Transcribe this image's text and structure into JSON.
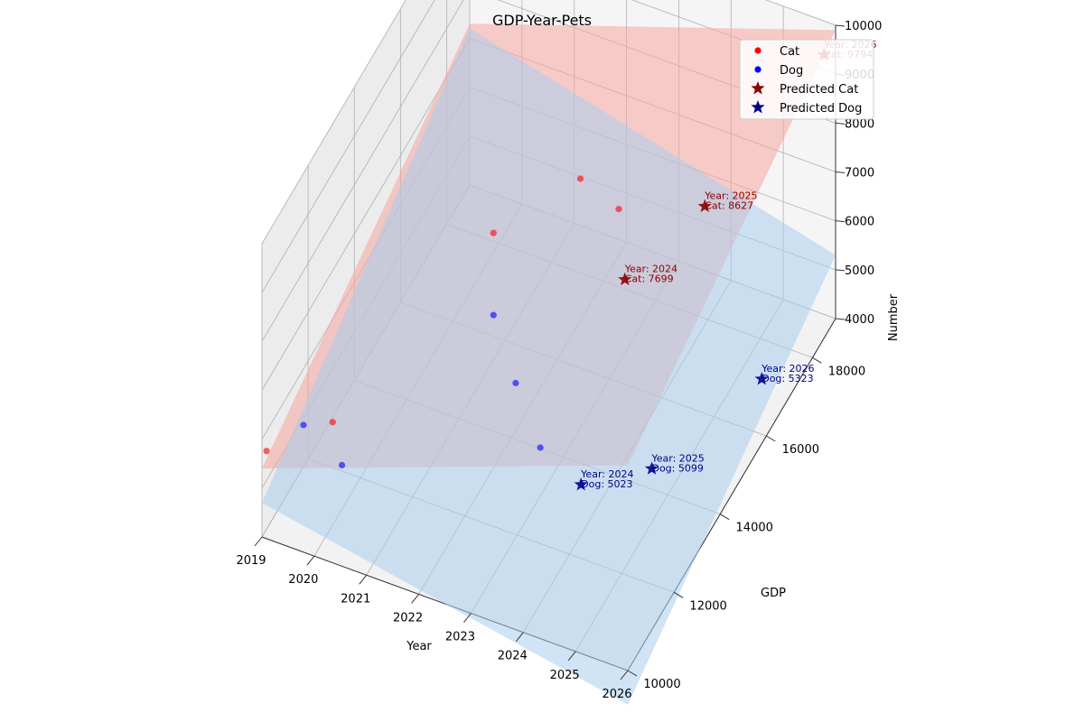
{
  "chart_data": {
    "type": "scatter",
    "title": "GDP-Year-Pets",
    "xlabel": "Year",
    "ylabel": "GDP",
    "zlabel": "Number",
    "x_ticks": [
      "2019",
      "2020",
      "2021",
      "2022",
      "2023",
      "2024",
      "2025",
      "2026"
    ],
    "y_ticks": [
      "10000",
      "12000",
      "14000",
      "16000",
      "18000"
    ],
    "z_ticks": [
      "4000",
      "5000",
      "6000",
      "7000",
      "8000",
      "9000",
      "10000"
    ],
    "xlim": [
      2019,
      2026
    ],
    "ylim": [
      10000,
      19000
    ],
    "zlim": [
      4000,
      10000
    ],
    "legend_position": "top-right",
    "series": [
      {
        "name": "Cat",
        "marker": "circle",
        "color": "#ff0000",
        "points": [
          [
            2019,
            10200,
            5600
          ],
          [
            2020,
            10800,
            6100
          ],
          [
            2021,
            15500,
            6600
          ],
          [
            2022,
            17000,
            6900
          ],
          [
            2023,
            16400,
            7150
          ]
        ]
      },
      {
        "name": "Dog",
        "marker": "circle",
        "color": "#0000ff",
        "points": [
          [
            2019,
            11800,
            4850
          ],
          [
            2020,
            11200,
            4900
          ],
          [
            2021,
            15500,
            4920
          ],
          [
            2022,
            14200,
            4960
          ],
          [
            2023,
            13000,
            4990
          ]
        ]
      },
      {
        "name": "Predicted Cat",
        "marker": "star",
        "color": "#8b0000",
        "points": [
          [
            2024,
            14400,
            7699
          ],
          [
            2025,
            15600,
            8627
          ],
          [
            2026,
            18500,
            9794
          ]
        ]
      },
      {
        "name": "Predicted Dog",
        "marker": "star",
        "color": "#00008b",
        "points": [
          [
            2024,
            12500,
            5023
          ],
          [
            2025,
            13300,
            5099
          ],
          [
            2026,
            15800,
            5323
          ]
        ]
      }
    ],
    "annotations": [
      {
        "series": "Predicted Cat",
        "lines": [
          "Year: 2024",
          "Cat: 7699"
        ]
      },
      {
        "series": "Predicted Cat",
        "lines": [
          "Year: 2025",
          "Cat: 8627"
        ]
      },
      {
        "series": "Predicted Cat",
        "lines": [
          "Year: 2026",
          "Cat: 9794"
        ]
      },
      {
        "series": "Predicted Dog",
        "lines": [
          "Year: 2024",
          "Dog: 5023"
        ]
      },
      {
        "series": "Predicted Dog",
        "lines": [
          "Year: 2025",
          "Dog: 5099"
        ]
      },
      {
        "series": "Predicted Dog",
        "lines": [
          "Year: 2026",
          "Dog: 5323"
        ]
      }
    ],
    "surfaces": [
      {
        "name": "Cat",
        "color": "#f4a6a0",
        "corners": [
          [
            2019,
            10000,
            5400
          ],
          [
            2026,
            10000,
            8200
          ],
          [
            2026,
            19000,
            9900
          ],
          [
            2019,
            19000,
            7300
          ]
        ]
      },
      {
        "name": "Dog",
        "color": "#a9cdec",
        "corners": [
          [
            2019,
            10000,
            4700
          ],
          [
            2026,
            10000,
            3300
          ],
          [
            2026,
            19000,
            5300
          ],
          [
            2019,
            19000,
            7200
          ]
        ]
      }
    ],
    "colors": {
      "cat": "#ff0000",
      "dog": "#0000ff",
      "predicted_cat": "#8b0000",
      "predicted_dog": "#00008b",
      "pane": "#f2f2f2",
      "grid": "#b0b0b0"
    },
    "grid": true
  }
}
